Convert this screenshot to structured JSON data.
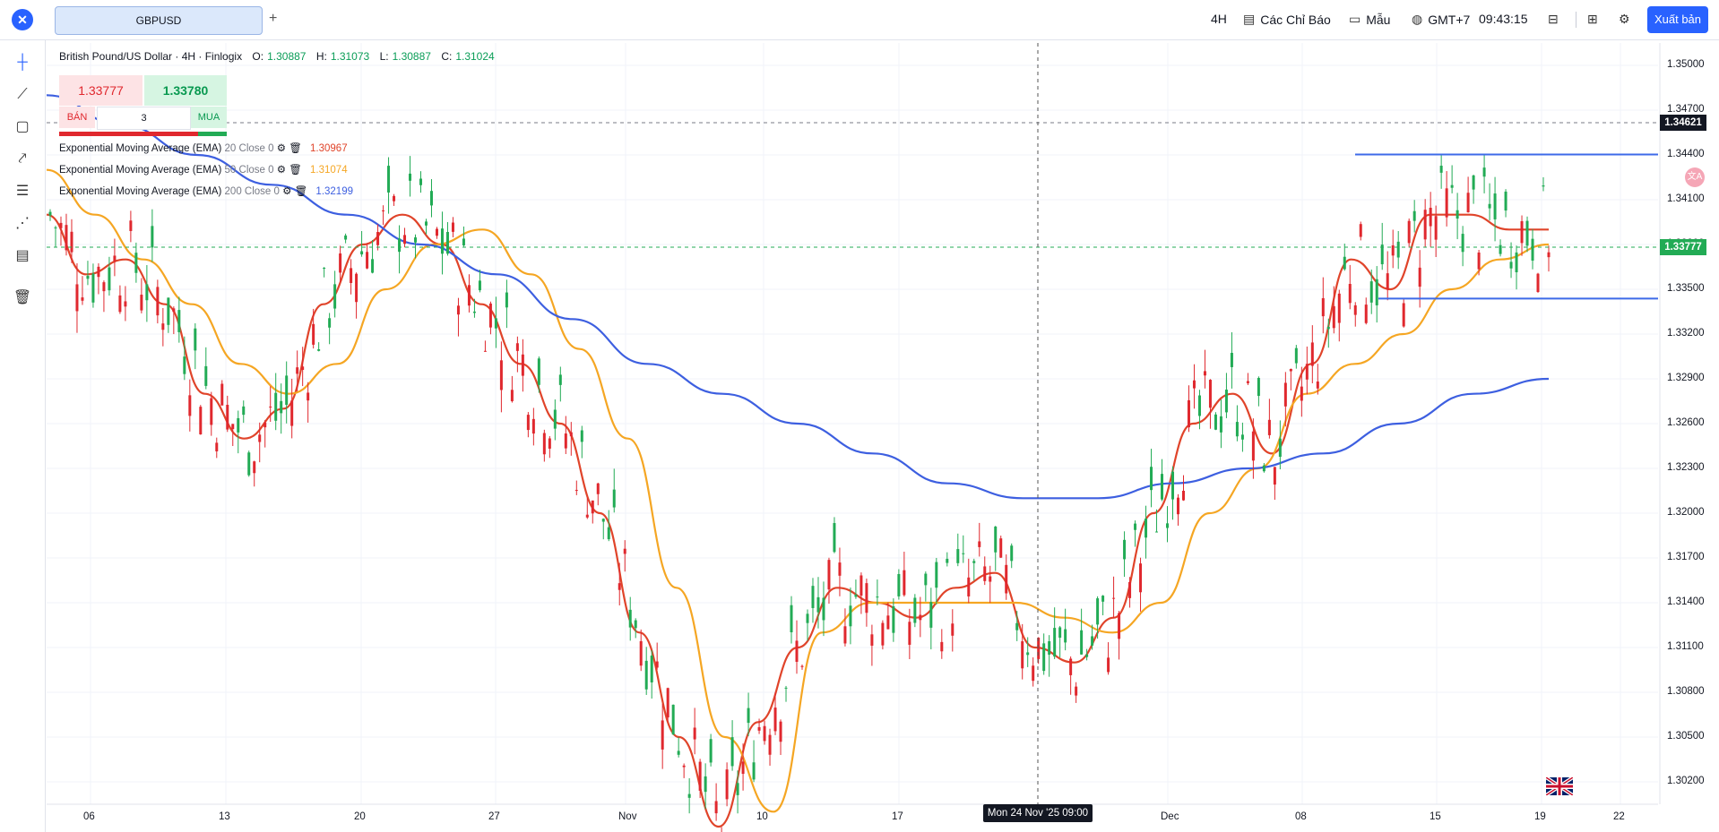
{
  "header": {
    "symbol": "GBPUSD",
    "add_tab": "+",
    "timeframe": "4H",
    "indicators": "Các Chỉ Báo",
    "templates": "Mẫu",
    "timezone": "GMT+7",
    "clock": "09:43:15",
    "publish": "Xuất bản"
  },
  "legend": {
    "title": "British Pound/US Dollar · 4H · Finlogix",
    "o_label": "O:",
    "o": "1.30887",
    "h_label": "H:",
    "h": "1.31073",
    "l_label": "L:",
    "l": "1.30887",
    "c_label": "C:",
    "c": "1.31024"
  },
  "trade": {
    "sell_price": "1.33777",
    "buy_price": "1.33780",
    "sell_label": "BÁN",
    "buy_label": "MUA",
    "quantity": "3"
  },
  "indicators": [
    {
      "name": "Exponential Moving Average (EMA)",
      "params": "20 Close 0",
      "value": "1.30967",
      "color": "#e0442a"
    },
    {
      "name": "Exponential Moving Average (EMA)",
      "params": "50 Close 0",
      "value": "1.31074",
      "color": "#f5a623"
    },
    {
      "name": "Exponential Moving Average (EMA)",
      "params": "200 Close 0",
      "value": "1.32199",
      "color": "#3d5fe0"
    }
  ],
  "axis": {
    "y_ticks": [
      "1.35000",
      "1.34700",
      "1.34400",
      "1.34100",
      "1.33800",
      "1.33500",
      "1.33200",
      "1.32900",
      "1.32600",
      "1.32300",
      "1.32000",
      "1.31700",
      "1.31400",
      "1.31100",
      "1.30800",
      "1.30500",
      "1.30200"
    ],
    "x_ticks": [
      "06",
      "13",
      "20",
      "27",
      "Nov",
      "10",
      "17",
      "Dec",
      "08",
      "15",
      "19",
      "22"
    ],
    "crosshair_time": "Mon 24 Nov '25 09:00",
    "price_badge_dark": "1.34621",
    "price_badge_green": "1.33777"
  },
  "colors": {
    "up": "#22ab55",
    "down": "#e0282e",
    "ema20": "#e0442a",
    "ema50": "#f5a623",
    "ema200": "#3d5fe0",
    "accent": "#2962ff"
  },
  "chart_data": {
    "type": "candlestick",
    "ylim": [
      1.3005,
      1.3515
    ],
    "series": [
      {
        "name": "EMA 20",
        "values": [
          1.34,
          1.336,
          1.337,
          1.334,
          1.328,
          1.325,
          1.327,
          1.334,
          1.338,
          1.34,
          1.338,
          1.334,
          1.33,
          1.326,
          1.32,
          1.312,
          1.305,
          1.299,
          1.306,
          1.311,
          1.315,
          1.314,
          1.313,
          1.315,
          1.316,
          1.311,
          1.31,
          1.313,
          1.32,
          1.326,
          1.328,
          1.324,
          1.33,
          1.337,
          1.335,
          1.34,
          1.34,
          1.339,
          1.339
        ]
      },
      {
        "name": "EMA 50",
        "values": [
          1.343,
          1.34,
          1.337,
          1.334,
          1.33,
          1.328,
          1.33,
          1.335,
          1.338,
          1.339,
          1.336,
          1.331,
          1.325,
          1.315,
          1.305,
          1.3,
          1.312,
          1.314,
          1.314,
          1.314,
          1.314,
          1.313,
          1.312,
          1.314,
          1.32,
          1.323,
          1.328,
          1.33,
          1.332,
          1.335,
          1.337,
          1.338
        ]
      },
      {
        "name": "EMA 200",
        "values": [
          1.348,
          1.346,
          1.344,
          1.342,
          1.34,
          1.338,
          1.336,
          1.333,
          1.33,
          1.328,
          1.326,
          1.324,
          1.322,
          1.321,
          1.321,
          1.322,
          1.323,
          1.324,
          1.326,
          1.328,
          1.329
        ]
      }
    ],
    "horizontal_lines": [
      1.34403,
      1.33438
    ],
    "grid": true
  }
}
